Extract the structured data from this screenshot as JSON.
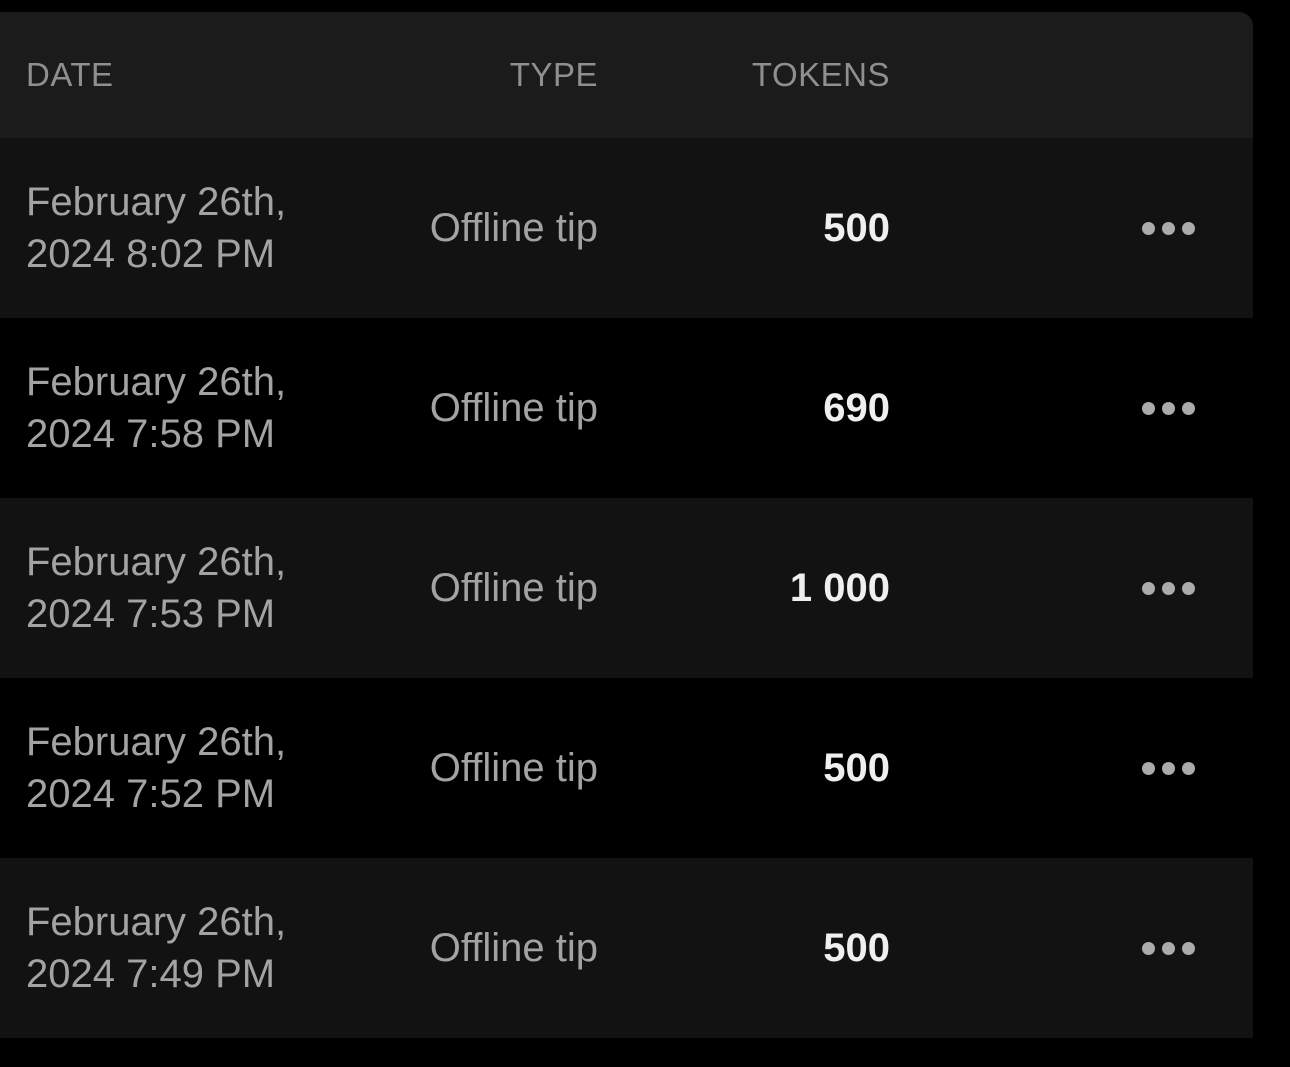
{
  "table": {
    "columns": [
      {
        "key": "date",
        "label": "DATE"
      },
      {
        "key": "type",
        "label": "TYPE"
      },
      {
        "key": "tokens",
        "label": "TOKENS"
      }
    ],
    "rows": [
      {
        "date": "February 26th, 2024 8:02 PM",
        "type": "Offline tip",
        "tokens": "500"
      },
      {
        "date": "February 26th, 2024 7:58 PM",
        "type": "Offline tip",
        "tokens": "690"
      },
      {
        "date": "February 26th, 2024 7:53 PM",
        "type": "Offline tip",
        "tokens": "1 000"
      },
      {
        "date": "February 26th, 2024 7:52 PM",
        "type": "Offline tip",
        "tokens": "500"
      },
      {
        "date": "February 26th, 2024 7:49 PM",
        "type": "Offline tip",
        "tokens": "500"
      }
    ],
    "row_menu_icon": "ellipsis-icon"
  },
  "colors": {
    "page_background": "#000000",
    "header_background": "#1b1b1b",
    "row_alt_background": "#121212",
    "header_text": "#8f8f8f",
    "body_text": "#a3a3a3",
    "tokens_text": "#efefef",
    "ellipsis_dot": "#ababab"
  }
}
